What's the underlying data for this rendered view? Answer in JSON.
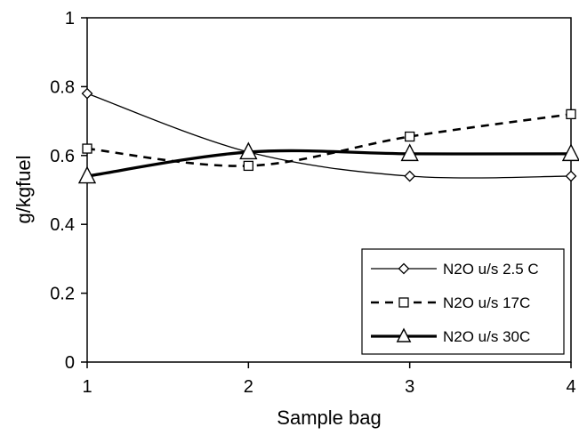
{
  "chart_data": {
    "type": "line",
    "title": "",
    "xlabel": "Sample bag",
    "ylabel": "g/kgfuel",
    "x": [
      1,
      2,
      3,
      4
    ],
    "x_tick_labels": [
      "1",
      "2",
      "3",
      "4"
    ],
    "xlim": [
      1,
      4
    ],
    "ylim": [
      0,
      1
    ],
    "y_ticks": [
      0,
      0.2,
      0.4,
      0.6,
      0.8,
      1
    ],
    "y_tick_labels": [
      "0",
      "0.2",
      "0.4",
      "0.6",
      "0.8",
      "1"
    ],
    "grid": false,
    "legend_position": "bottom-right",
    "series": [
      {
        "name": "N2O u/s 2.5 C",
        "values": [
          0.78,
          0.61,
          0.54,
          0.54
        ],
        "marker": "diamond",
        "line_style": "solid-thin",
        "color": "#000000"
      },
      {
        "name": "N2O u/s 17C",
        "values": [
          0.62,
          0.57,
          0.655,
          0.72
        ],
        "marker": "square",
        "line_style": "dashed",
        "color": "#000000"
      },
      {
        "name": "N2O u/s 30C",
        "values": [
          0.54,
          0.61,
          0.605,
          0.605
        ],
        "marker": "triangle",
        "line_style": "solid-thick",
        "color": "#000000"
      }
    ]
  }
}
